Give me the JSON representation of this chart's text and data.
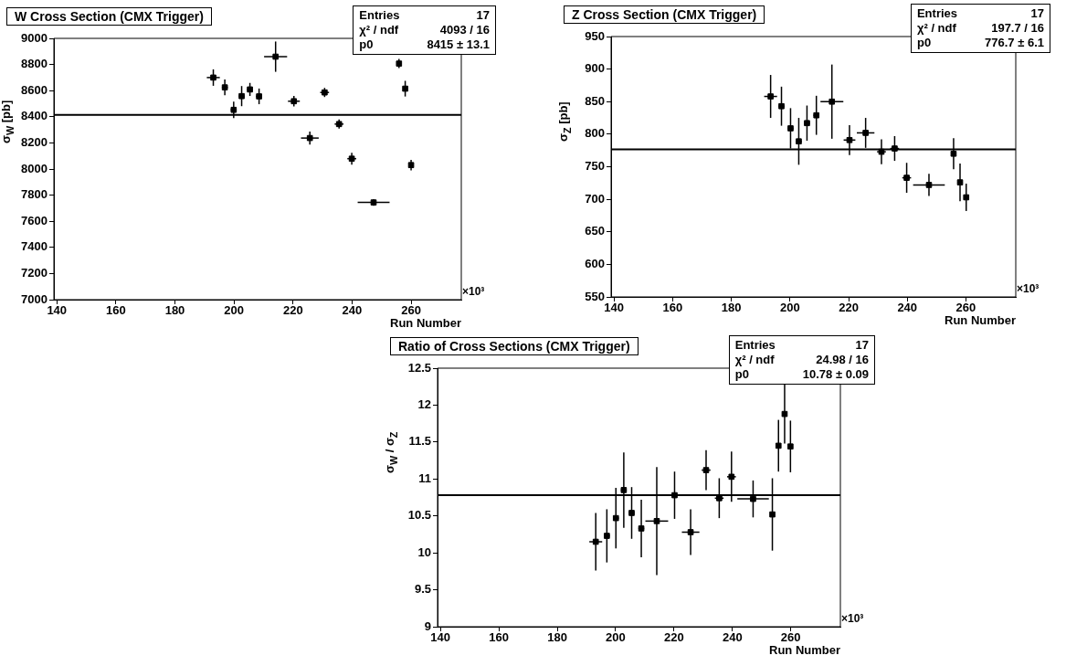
{
  "chart_data": [
    {
      "type": "scatter",
      "title": "W Cross Section (CMX Trigger)",
      "xlabel": "Run Number",
      "ylabel": "σ$_{W}$ [pb]",
      "marker": "square",
      "xlim": [
        139,
        277
      ],
      "xticks": [
        140,
        160,
        180,
        200,
        220,
        240,
        260
      ],
      "ylim": [
        7000,
        9000
      ],
      "yticks": [
        7000,
        7200,
        7400,
        7600,
        7800,
        8000,
        8200,
        8400,
        8600,
        8800,
        9000
      ],
      "x": [
        193.0,
        196.9,
        199.9,
        202.6,
        205.4,
        208.5,
        214.1,
        220.3,
        225.7,
        230.7,
        235.6,
        239.9,
        247.3,
        255.9,
        258.0,
        260.0
      ],
      "values": [
        8700,
        8625,
        8453,
        8558,
        8609,
        8556,
        8860,
        8519,
        8237,
        8586,
        8344,
        8079,
        7744,
        8807,
        8615,
        8030
      ],
      "errors": [
        63,
        60,
        63,
        77,
        50,
        60,
        116,
        40,
        50,
        35,
        35,
        45,
        25,
        35,
        60,
        40
      ],
      "xerrors": [
        2.2,
        1,
        1,
        1,
        1,
        1,
        3.9,
        2,
        3,
        1.5,
        1.5,
        1.5,
        5.4,
        0.8,
        0.8,
        0.8
      ],
      "color": "#000000",
      "ref_lines": [
        {
          "axis": "y",
          "value": 8415,
          "color": "#000000"
        }
      ],
      "annotations": [
        "Entries",
        "17",
        "χ² / ndf",
        "4093 / 16",
        "p0",
        "8415 ± 13.1",
        "×10³"
      ]
    },
    {
      "type": "scatter",
      "title": "Z Cross Section (CMX Trigger)",
      "xlabel": "Run Number",
      "ylabel": "σ$_{Z}$ [pb]",
      "marker": "square",
      "xlim": [
        139,
        277
      ],
      "xticks": [
        140,
        160,
        180,
        200,
        220,
        240,
        260
      ],
      "ylim": [
        550,
        950
      ],
      "yticks": [
        550,
        600,
        650,
        700,
        750,
        800,
        850,
        900,
        950
      ],
      "x": [
        193.4,
        197.1,
        200.2,
        203.0,
        205.8,
        209.0,
        214.3,
        220.3,
        225.8,
        231.2,
        235.7,
        239.8,
        247.4,
        255.8,
        258.0,
        260.1
      ],
      "values": [
        858,
        843,
        809,
        789,
        817,
        829,
        850,
        791,
        802,
        773,
        778,
        733,
        722,
        770,
        726,
        703
      ],
      "errors": [
        33,
        30,
        31,
        36,
        27,
        30,
        57,
        23,
        23,
        19,
        19,
        23,
        17,
        24,
        29,
        21
      ],
      "xerrors": [
        2.2,
        1,
        1,
        1,
        1,
        1,
        3.9,
        2,
        3,
        1.5,
        1.5,
        1.5,
        5.4,
        0.8,
        0.8,
        0.8
      ],
      "color": "#000000",
      "ref_lines": [
        {
          "axis": "y",
          "value": 776.7,
          "color": "#000000"
        }
      ],
      "annotations": [
        "Entries",
        "17",
        "χ² / ndf",
        "197.7 / 16",
        "p0",
        "776.7 ± 6.1",
        "×10³"
      ]
    },
    {
      "type": "scatter",
      "title": "Ratio of Cross Sections (CMX Trigger)",
      "xlabel": "Run Number",
      "ylabel": "σ$_{W}$ / σ$_{Z}$",
      "marker": "square",
      "xlim": [
        139,
        277
      ],
      "xticks": [
        140,
        160,
        180,
        200,
        220,
        240,
        260
      ],
      "ylim": [
        9,
        12.5
      ],
      "yticks": [
        9,
        9.5,
        10,
        10.5,
        11,
        11.5,
        12,
        12.5
      ],
      "x": [
        193.2,
        197.0,
        200.1,
        202.8,
        205.5,
        208.8,
        214.1,
        220.2,
        225.7,
        231.0,
        235.5,
        239.7,
        247.1,
        253.7,
        255.8,
        257.9,
        259.9
      ],
      "values": [
        10.15,
        10.23,
        10.47,
        10.85,
        10.54,
        10.33,
        10.43,
        10.78,
        10.28,
        11.12,
        10.74,
        11.03,
        10.73,
        10.52,
        11.45,
        11.88,
        11.44
      ],
      "errors": [
        0.39,
        0.36,
        0.41,
        0.51,
        0.35,
        0.39,
        0.73,
        0.32,
        0.31,
        0.27,
        0.27,
        0.34,
        0.25,
        0.49,
        0.35,
        0.4,
        0.35
      ],
      "xerrors": [
        2.2,
        1,
        1,
        1,
        1,
        1,
        3.9,
        2,
        3,
        1.5,
        1.5,
        1.5,
        5.4,
        0.8,
        0.8,
        0.8,
        0.8
      ],
      "color": "#000000",
      "ref_lines": [
        {
          "axis": "y",
          "value": 10.78,
          "color": "#000000"
        }
      ],
      "annotations": [
        "Entries",
        "17",
        "χ² / ndf",
        "24.98 / 16",
        "p0",
        "10.78 ± 0.09",
        "×10³"
      ]
    }
  ]
}
